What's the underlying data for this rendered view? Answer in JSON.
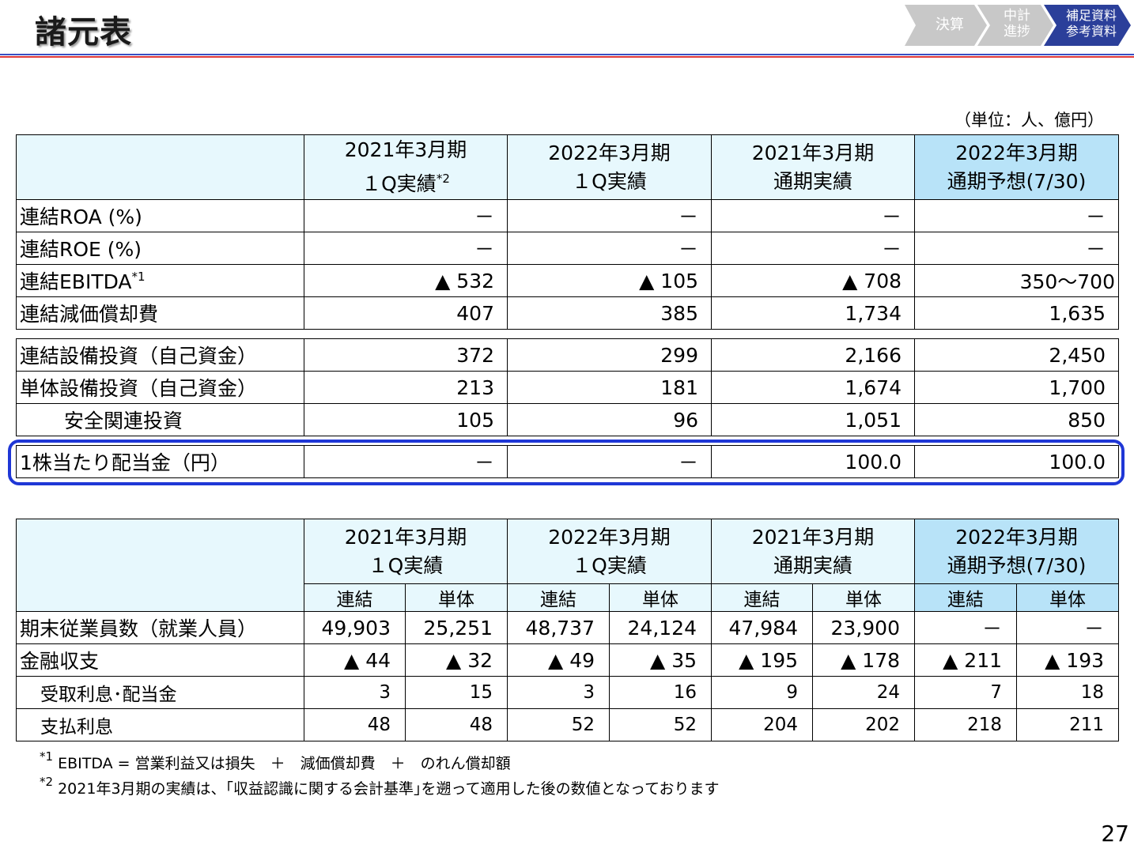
{
  "title": "諸元表",
  "nav": [
    {
      "label": "決算"
    },
    {
      "label": "中計\n進捗"
    },
    {
      "label": "補足資料\n参考資料"
    }
  ],
  "unit": "（単位：人、億円）",
  "headers": [
    {
      "line1": "2021年3月期",
      "line2": "１Q実績",
      "sup": "*2"
    },
    {
      "line1": "2022年3月期",
      "line2": "１Q実績",
      "sup": ""
    },
    {
      "line1": "2021年3月期",
      "line2": "通期実績",
      "sup": ""
    },
    {
      "line1": "2022年3月期",
      "line2": "通期予想(7/30)",
      "sup": ""
    }
  ],
  "table1": [
    {
      "label": "連結ROA (%)",
      "sup": "",
      "values": [
        "－",
        "－",
        "－",
        "－"
      ]
    },
    {
      "label": "連結ROE (%)",
      "sup": "",
      "values": [
        "－",
        "－",
        "－",
        "－"
      ]
    },
    {
      "label": "連結EBITDA",
      "sup": "*1",
      "values": [
        "▲ 532",
        "▲ 105",
        "▲ 708",
        "350～700"
      ]
    },
    {
      "label": "連結減価償却費",
      "sup": "",
      "values": [
        "407",
        "385",
        "1,734",
        "1,635"
      ]
    }
  ],
  "table2": [
    {
      "label": "連結設備投資（自己資金）",
      "values": [
        "372",
        "299",
        "2,166",
        "2,450"
      ]
    },
    {
      "label": "単体設備投資（自己資金）",
      "values": [
        "213",
        "181",
        "1,674",
        "1,700"
      ]
    },
    {
      "label": "安全関連投資",
      "values": [
        "105",
        "96",
        "1,051",
        "850"
      ]
    }
  ],
  "table3": [
    {
      "label": "1株当たり配当金（円）",
      "values": [
        "－",
        "－",
        "100.0",
        "100.0"
      ]
    }
  ],
  "table4": {
    "sub_headers": [
      "連結",
      "単体"
    ],
    "rows": [
      {
        "label": "期末従業員数（就業人員）",
        "values": [
          "49,903",
          "25,251",
          "48,737",
          "24,124",
          "47,984",
          "23,900",
          "－",
          "－"
        ]
      },
      {
        "label": "金融収支",
        "values": [
          "▲ 44",
          "▲ 32",
          "▲ 49",
          "▲ 35",
          "▲ 195",
          "▲ 178",
          "▲ 211",
          "▲ 193"
        ]
      },
      {
        "label": "受取利息･配当金",
        "values": [
          "3",
          "15",
          "3",
          "16",
          "9",
          "24",
          "7",
          "18"
        ]
      },
      {
        "label": "支払利息",
        "values": [
          "48",
          "48",
          "52",
          "52",
          "204",
          "202",
          "218",
          "211"
        ]
      }
    ]
  },
  "footnotes": [
    {
      "mark": "*1",
      "text": "EBITDA = 営業利益又は損失　＋　減価償却費　＋　のれん償却額"
    },
    {
      "mark": "*2",
      "text": "2021年3月期の実績は、｢収益認識に関する会計基準｣を遡って適用した後の数値となっております"
    }
  ],
  "page_number": "27",
  "colors": {
    "header_bg": "#e7f8fd",
    "forecast_bg": "#b8e3f8",
    "highlight": "#1f37d6",
    "line_blue": "#3a4fc4",
    "line_red": "#e03a3a"
  }
}
